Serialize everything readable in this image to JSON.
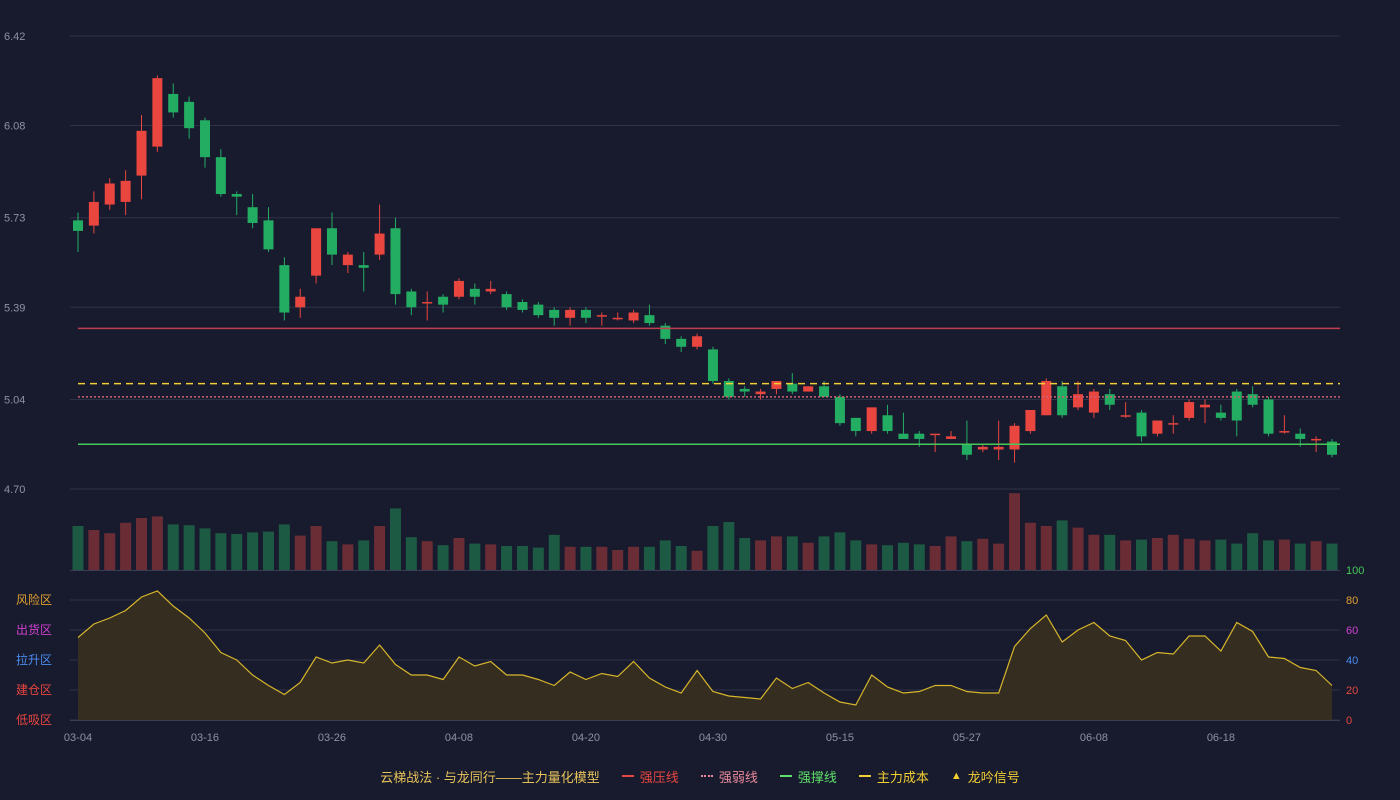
{
  "colors": {
    "background": "#181a2e",
    "up": "#e8463f",
    "down": "#23ad63",
    "vol_up": "#6b2d35",
    "vol_down": "#1c5a43",
    "grid": "#2f3247",
    "resist": "#c0404f",
    "weak": "#d06070",
    "support": "#46c857",
    "cost": "#f2cf33",
    "osc_line": "#d7b62b",
    "osc_fill": "#37301f",
    "axis_text": "#8e92a3"
  },
  "chart_data": [
    {
      "type": "candlestick",
      "ylim": [
        4.7,
        6.48
      ],
      "y_ticks": [
        "6.42",
        "6.08",
        "5.73",
        "5.39",
        "5.04",
        "4.70"
      ],
      "x_tick_labels": [
        {
          "i": 0,
          "label": "03-04"
        },
        {
          "i": 8,
          "label": "03-16"
        },
        {
          "i": 16,
          "label": "03-26"
        },
        {
          "i": 24,
          "label": "04-08"
        },
        {
          "i": 32,
          "label": "04-20"
        },
        {
          "i": 40,
          "label": "04-30"
        },
        {
          "i": 48,
          "label": "05-15"
        },
        {
          "i": 56,
          "label": "05-27"
        },
        {
          "i": 64,
          "label": "06-08"
        },
        {
          "i": 72,
          "label": "06-18"
        }
      ],
      "candles": [
        [
          5.72,
          5.68,
          5.75,
          5.6
        ],
        [
          5.7,
          5.79,
          5.83,
          5.67
        ],
        [
          5.78,
          5.86,
          5.88,
          5.76
        ],
        [
          5.79,
          5.87,
          5.91,
          5.74
        ],
        [
          5.89,
          6.06,
          6.12,
          5.8
        ],
        [
          6.0,
          6.26,
          6.27,
          5.98
        ],
        [
          6.2,
          6.13,
          6.24,
          6.11
        ],
        [
          6.17,
          6.07,
          6.19,
          6.03
        ],
        [
          6.1,
          5.96,
          6.11,
          5.92
        ],
        [
          5.96,
          5.82,
          5.99,
          5.81
        ],
        [
          5.82,
          5.81,
          5.83,
          5.74
        ],
        [
          5.77,
          5.71,
          5.82,
          5.69
        ],
        [
          5.72,
          5.61,
          5.77,
          5.6
        ],
        [
          5.55,
          5.37,
          5.58,
          5.34
        ],
        [
          5.39,
          5.43,
          5.46,
          5.35
        ],
        [
          5.51,
          5.69,
          5.69,
          5.48
        ],
        [
          5.69,
          5.59,
          5.75,
          5.55
        ],
        [
          5.55,
          5.59,
          5.6,
          5.52
        ],
        [
          5.55,
          5.54,
          5.6,
          5.45
        ],
        [
          5.59,
          5.67,
          5.78,
          5.57
        ],
        [
          5.69,
          5.44,
          5.73,
          5.4
        ],
        [
          5.45,
          5.39,
          5.46,
          5.36
        ],
        [
          5.41,
          5.41,
          5.45,
          5.34
        ],
        [
          5.43,
          5.4,
          5.44,
          5.37
        ],
        [
          5.43,
          5.49,
          5.5,
          5.42
        ],
        [
          5.46,
          5.43,
          5.48,
          5.4
        ],
        [
          5.45,
          5.46,
          5.49,
          5.44
        ],
        [
          5.44,
          5.39,
          5.45,
          5.38
        ],
        [
          5.41,
          5.38,
          5.42,
          5.37
        ],
        [
          5.4,
          5.36,
          5.41,
          5.35
        ],
        [
          5.38,
          5.35,
          5.39,
          5.32
        ],
        [
          5.35,
          5.38,
          5.39,
          5.32
        ],
        [
          5.38,
          5.35,
          5.39,
          5.33
        ],
        [
          5.36,
          5.36,
          5.37,
          5.32
        ],
        [
          5.35,
          5.35,
          5.37,
          5.34
        ],
        [
          5.34,
          5.37,
          5.38,
          5.33
        ],
        [
          5.36,
          5.33,
          5.4,
          5.32
        ],
        [
          5.32,
          5.27,
          5.33,
          5.25
        ],
        [
          5.27,
          5.24,
          5.28,
          5.22
        ],
        [
          5.24,
          5.28,
          5.29,
          5.23
        ],
        [
          5.23,
          5.11,
          5.24,
          5.1
        ],
        [
          5.11,
          5.05,
          5.12,
          5.04
        ],
        [
          5.08,
          5.07,
          5.09,
          5.05
        ],
        [
          5.06,
          5.07,
          5.08,
          5.04
        ],
        [
          5.08,
          5.11,
          5.11,
          5.06
        ],
        [
          5.1,
          5.07,
          5.14,
          5.06
        ],
        [
          5.07,
          5.09,
          5.09,
          5.07
        ],
        [
          5.09,
          5.05,
          5.11,
          5.05
        ],
        [
          5.05,
          4.95,
          5.06,
          4.94
        ],
        [
          4.97,
          4.92,
          4.97,
          4.9
        ],
        [
          4.92,
          5.01,
          5.01,
          4.91
        ],
        [
          4.98,
          4.92,
          5.02,
          4.91
        ],
        [
          4.91,
          4.89,
          4.99,
          4.89
        ],
        [
          4.91,
          4.89,
          4.92,
          4.86
        ],
        [
          4.91,
          4.91,
          4.91,
          4.84
        ],
        [
          4.89,
          4.9,
          4.92,
          4.89
        ],
        [
          4.87,
          4.83,
          4.96,
          4.81
        ],
        [
          4.85,
          4.86,
          4.87,
          4.84
        ],
        [
          4.85,
          4.86,
          4.96,
          4.81
        ],
        [
          4.85,
          4.94,
          4.95,
          4.8
        ],
        [
          4.92,
          5.0,
          5.0,
          4.91
        ],
        [
          4.98,
          5.11,
          5.12,
          4.98
        ],
        [
          5.09,
          4.98,
          5.11,
          4.97
        ],
        [
          5.01,
          5.06,
          5.11,
          5.0
        ],
        [
          4.99,
          5.07,
          5.08,
          4.97
        ],
        [
          5.06,
          5.02,
          5.08,
          5.0
        ],
        [
          4.98,
          4.98,
          5.03,
          4.97
        ],
        [
          4.99,
          4.9,
          5.0,
          4.88
        ],
        [
          4.91,
          4.96,
          4.96,
          4.9
        ],
        [
          4.95,
          4.95,
          4.98,
          4.91
        ],
        [
          4.97,
          5.03,
          5.04,
          4.96
        ],
        [
          5.01,
          5.02,
          5.04,
          4.95
        ],
        [
          4.99,
          4.97,
          5.02,
          4.96
        ],
        [
          5.07,
          4.96,
          5.08,
          4.9
        ],
        [
          5.06,
          5.02,
          5.09,
          5.01
        ],
        [
          5.04,
          4.91,
          5.05,
          4.9
        ],
        [
          4.92,
          4.92,
          4.98,
          4.91
        ],
        [
          4.91,
          4.89,
          4.93,
          4.86
        ],
        [
          4.89,
          4.89,
          4.9,
          4.84
        ],
        [
          4.88,
          4.83,
          4.89,
          4.82
        ]
      ],
      "lines": {
        "resist": 5.31,
        "weak": 5.05,
        "cost": 5.1,
        "support": 4.87
      },
      "volume": [
        55,
        50,
        46,
        59,
        65,
        67,
        57,
        56,
        52,
        46,
        45,
        47,
        48,
        57,
        43,
        55,
        36,
        32,
        37,
        55,
        77,
        41,
        36,
        31,
        40,
        33,
        32,
        30,
        30,
        28,
        44,
        29,
        29,
        29,
        25,
        29,
        29,
        37,
        30,
        24,
        55,
        60,
        40,
        37,
        42,
        42,
        34,
        42,
        47,
        37,
        32,
        31,
        34,
        32,
        30,
        42,
        36,
        39,
        33,
        96,
        59,
        55,
        62,
        53,
        44,
        44,
        37,
        38,
        40,
        44,
        39,
        37,
        38,
        33,
        46,
        37,
        38,
        33,
        36,
        33
      ],
      "volume_max": 100
    },
    {
      "type": "area",
      "ylim": [
        0,
        100
      ],
      "y_ticks": [
        "100",
        "80",
        "60",
        "40",
        "20",
        "0"
      ],
      "zone_labels": [
        {
          "value": 80,
          "label": "风险区",
          "color": "#e0a030"
        },
        {
          "value": 60,
          "label": "出货区",
          "color": "#d040d0"
        },
        {
          "value": 40,
          "label": "拉升区",
          "color": "#4a8ef0"
        },
        {
          "value": 20,
          "label": "建仓区",
          "color": "#e8463f"
        },
        {
          "value": 0,
          "label": "低吸区",
          "color": "#e8463f"
        }
      ],
      "values": [
        55,
        64,
        68,
        73,
        82,
        86,
        76,
        68,
        58,
        45,
        40,
        30,
        23,
        17,
        25,
        42,
        38,
        40,
        38,
        50,
        37,
        30,
        30,
        27,
        42,
        36,
        39,
        30,
        30,
        27,
        23,
        32,
        27,
        31,
        29,
        39,
        28,
        22,
        18,
        33,
        19,
        16,
        15,
        14,
        28,
        21,
        25,
        18,
        12,
        10,
        30,
        22,
        18,
        19,
        23,
        23,
        19,
        18,
        18,
        49,
        61,
        70,
        52,
        60,
        65,
        56,
        53,
        40,
        45,
        44,
        56,
        56,
        46,
        65,
        59,
        42,
        41,
        35,
        33,
        23
      ]
    }
  ],
  "legend": {
    "title": "云梯战法 · 与龙同行——主力量化模型",
    "items": [
      {
        "name": "强压线",
        "color": "#e8463f",
        "style": "solid"
      },
      {
        "name": "强弱线",
        "color": "#e88a9a",
        "style": "dotted"
      },
      {
        "name": "强撑线",
        "color": "#5ee06a",
        "style": "solid"
      },
      {
        "name": "主力成本",
        "color": "#f2cf33",
        "style": "dashed"
      },
      {
        "name": "龙吟信号",
        "color": "#f2cf33",
        "style": "triangle"
      }
    ]
  }
}
